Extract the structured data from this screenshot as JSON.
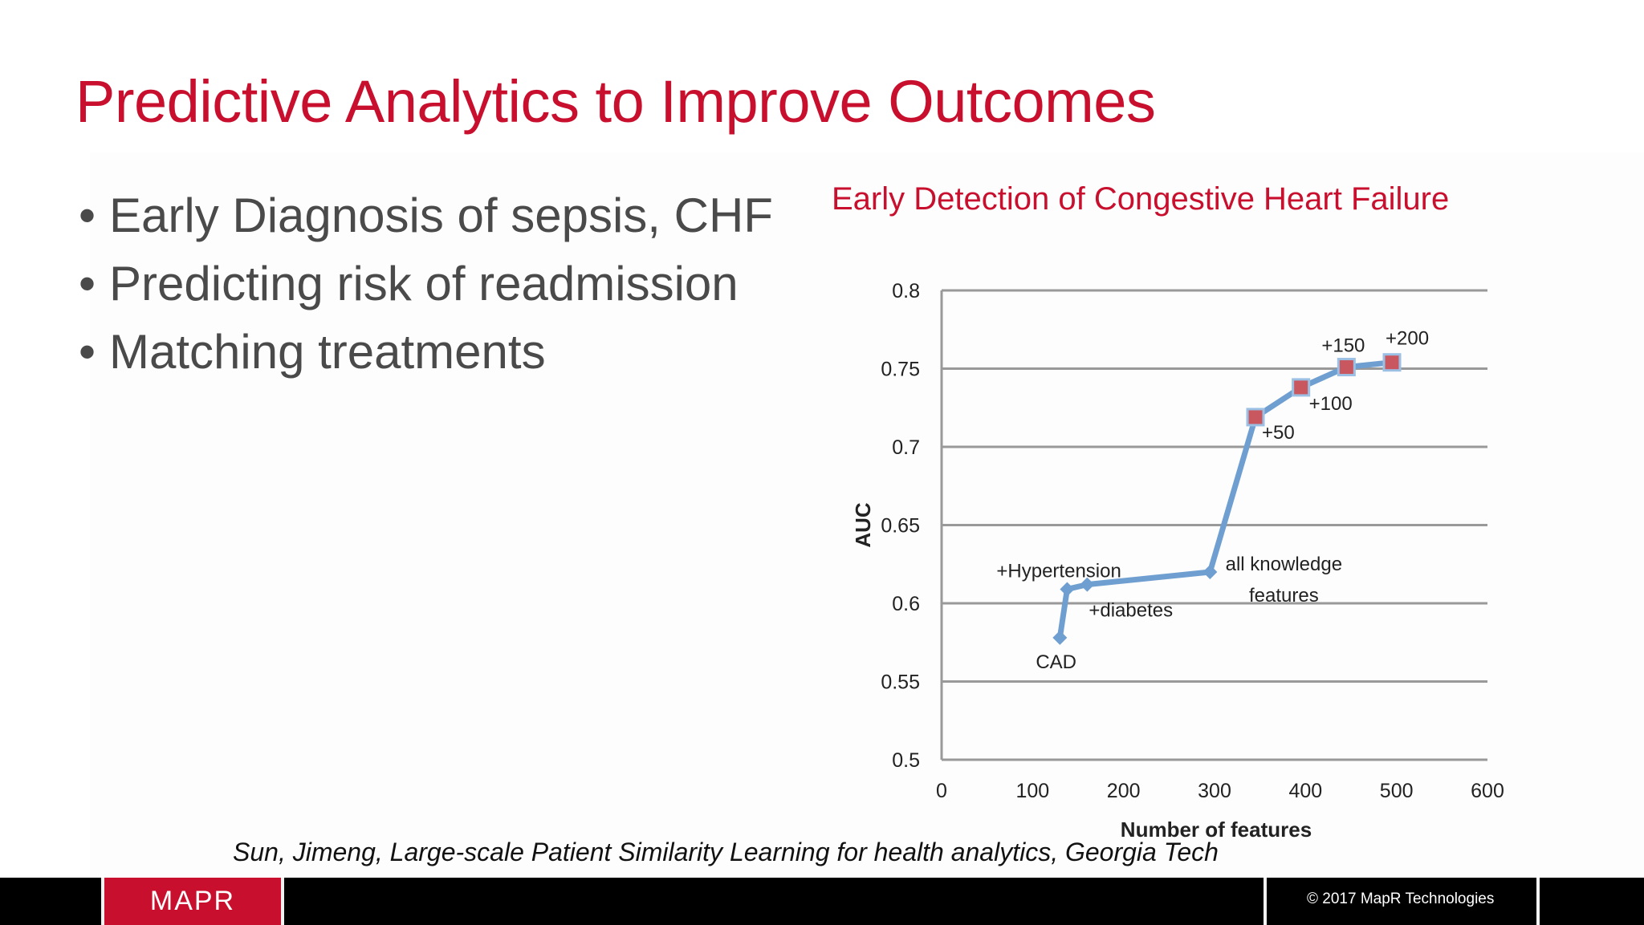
{
  "slide": {
    "title": "Predictive Analytics to Improve Outcomes",
    "bullets": [
      "Early Diagnosis of sepsis, CHF",
      "Predicting risk of readmission",
      "Matching treatments"
    ],
    "citation": "Sun, Jimeng, Large-scale Patient Similarity Learning for health analytics, Georgia Tech"
  },
  "chart_data": {
    "type": "line",
    "title": "Early Detection of Congestive Heart Failure",
    "xlabel": "Number of features",
    "ylabel": "AUC",
    "xlim": [
      0,
      600
    ],
    "ylim": [
      0.5,
      0.8
    ],
    "x_ticks": [
      "0",
      "100",
      "200",
      "300",
      "400",
      "500",
      "600"
    ],
    "y_ticks": [
      "0.5",
      "0.55",
      "0.6",
      "0.65",
      "0.7",
      "0.75",
      "0.8"
    ],
    "grid": true,
    "series": [
      {
        "points": [
          {
            "x": 130,
            "y": 0.578,
            "label": "CAD",
            "marker": "diamond"
          },
          {
            "x": 138,
            "y": 0.609,
            "label": "+Hypertension",
            "marker": "diamond"
          },
          {
            "x": 160,
            "y": 0.612,
            "label": "+diabetes",
            "marker": "diamond"
          },
          {
            "x": 295,
            "y": 0.62,
            "label": "all knowledge features",
            "marker": "diamond"
          },
          {
            "x": 345,
            "y": 0.719,
            "label": "+50",
            "marker": "square"
          },
          {
            "x": 395,
            "y": 0.738,
            "label": "+100",
            "marker": "square"
          },
          {
            "x": 445,
            "y": 0.751,
            "label": "+150",
            "marker": "square"
          },
          {
            "x": 495,
            "y": 0.754,
            "label": "+200",
            "marker": "square"
          }
        ]
      }
    ],
    "colors": {
      "line": "#6f9fd0",
      "square_marker": "#c9575f",
      "grid": "#999999"
    }
  },
  "footer": {
    "logo": "MAPR",
    "copyright": "© 2017 MapR Technologies"
  }
}
